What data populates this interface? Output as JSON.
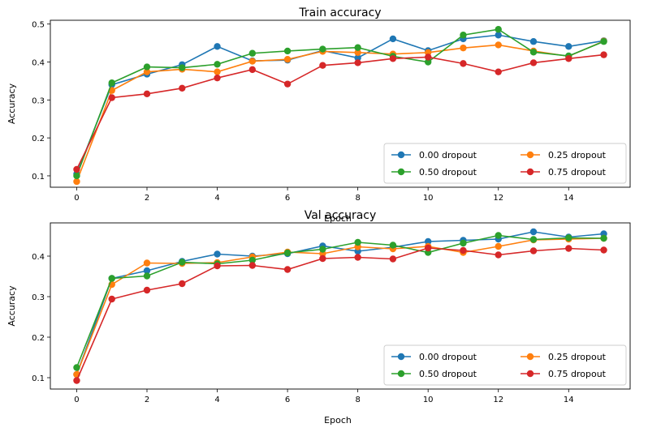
{
  "chart_data": [
    {
      "type": "line",
      "title": "Train accuracy",
      "xlabel": "Epoch",
      "ylabel": "Accuracy",
      "xlim": [
        -0.75,
        15.75
      ],
      "ylim": [
        0.07,
        0.51
      ],
      "xticks": [
        0,
        2,
        4,
        6,
        8,
        10,
        12,
        14
      ],
      "yticks": [
        0.1,
        0.2,
        0.3,
        0.4,
        0.5
      ],
      "legend_position": "lower-right",
      "x": [
        0,
        1,
        2,
        3,
        4,
        5,
        6,
        7,
        8,
        9,
        10,
        11,
        12,
        13,
        14,
        15
      ],
      "series": [
        {
          "name": "0.00 dropout",
          "color": "#1f77b4",
          "values": [
            0.105,
            0.34,
            0.368,
            0.393,
            0.441,
            0.403,
            0.405,
            0.43,
            0.411,
            0.461,
            0.43,
            0.461,
            0.471,
            0.454,
            0.441,
            0.456
          ]
        },
        {
          "name": "0.25 dropout",
          "color": "#ff7f0e",
          "values": [
            0.085,
            0.325,
            0.374,
            0.381,
            0.374,
            0.402,
            0.407,
            0.428,
            0.425,
            0.421,
            0.425,
            0.437,
            0.445,
            0.429,
            0.415,
            0.455
          ]
        },
        {
          "name": "0.50 dropout",
          "color": "#2ca02c",
          "values": [
            0.1,
            0.345,
            0.387,
            0.385,
            0.394,
            0.423,
            0.429,
            0.434,
            0.438,
            0.415,
            0.4,
            0.471,
            0.486,
            0.426,
            0.416,
            0.454
          ]
        },
        {
          "name": "0.75 dropout",
          "color": "#d62728",
          "values": [
            0.117,
            0.306,
            0.316,
            0.331,
            0.358,
            0.38,
            0.342,
            0.391,
            0.398,
            0.409,
            0.413,
            0.396,
            0.374,
            0.398,
            0.409,
            0.419
          ]
        }
      ]
    },
    {
      "type": "line",
      "title": "Val accuracy",
      "xlabel": "Epoch",
      "ylabel": "Accuracy",
      "xlim": [
        -0.75,
        15.75
      ],
      "ylim": [
        0.072,
        0.482
      ],
      "xticks": [
        0,
        2,
        4,
        6,
        8,
        10,
        12,
        14
      ],
      "yticks": [
        0.1,
        0.2,
        0.3,
        0.4
      ],
      "legend_position": "lower-right",
      "x": [
        0,
        1,
        2,
        3,
        4,
        5,
        6,
        7,
        8,
        9,
        10,
        11,
        12,
        13,
        14,
        15
      ],
      "series": [
        {
          "name": "0.00 dropout",
          "color": "#1f77b4",
          "values": [
            0.108,
            0.345,
            0.364,
            0.387,
            0.405,
            0.4,
            0.406,
            0.425,
            0.412,
            0.422,
            0.436,
            0.439,
            0.442,
            0.46,
            0.447,
            0.455
          ]
        },
        {
          "name": "0.25 dropout",
          "color": "#ff7f0e",
          "values": [
            0.108,
            0.33,
            0.383,
            0.382,
            0.384,
            0.398,
            0.41,
            0.406,
            0.423,
            0.418,
            0.424,
            0.409,
            0.424,
            0.44,
            0.442,
            0.444
          ]
        },
        {
          "name": "0.50 dropout",
          "color": "#2ca02c",
          "values": [
            0.125,
            0.345,
            0.351,
            0.385,
            0.381,
            0.39,
            0.408,
            0.417,
            0.434,
            0.427,
            0.409,
            0.432,
            0.451,
            0.441,
            0.445,
            0.444
          ]
        },
        {
          "name": "0.75 dropout",
          "color": "#d62728",
          "values": [
            0.093,
            0.294,
            0.316,
            0.332,
            0.376,
            0.377,
            0.367,
            0.394,
            0.397,
            0.393,
            0.42,
            0.414,
            0.403,
            0.413,
            0.419,
            0.415
          ]
        }
      ]
    }
  ]
}
